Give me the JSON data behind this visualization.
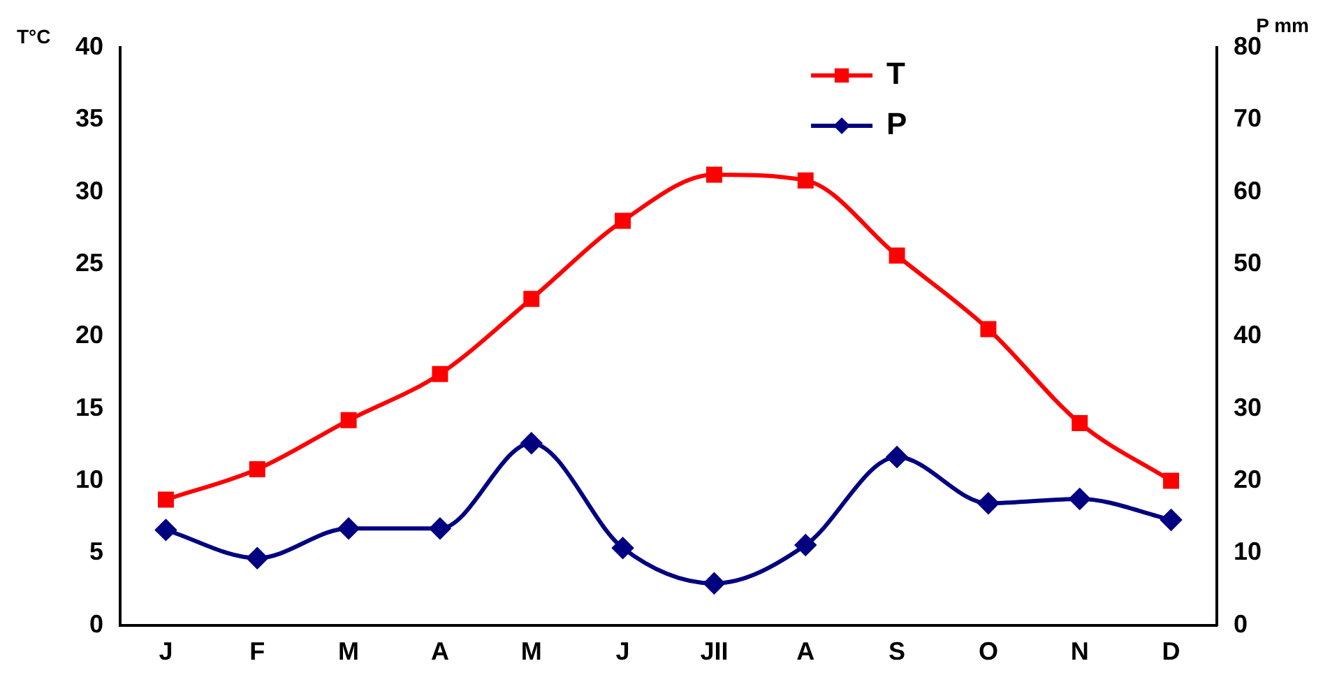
{
  "chart_data": {
    "type": "line",
    "ylabel": "T°C",
    "y2label": "P mm",
    "categories": [
      "J",
      "F",
      "M",
      "A",
      "M",
      "J",
      "JII",
      "A",
      "S",
      "O",
      "N",
      "D"
    ],
    "series": [
      {
        "name": "T",
        "color": "#ff0000",
        "marker": "square",
        "values": [
          8.7,
          10.8,
          14.2,
          17.4,
          22.6,
          28.0,
          31.2,
          30.8,
          25.6,
          20.5,
          14.0,
          10.0
        ]
      },
      {
        "name": "P",
        "color": "#000080",
        "marker": "diamond",
        "axis": "y2",
        "values": [
          13.2,
          9.3,
          13.4,
          13.4,
          25.2,
          10.7,
          5.8,
          11.1,
          23.3,
          16.9,
          17.5,
          14.6
        ]
      }
    ],
    "ylim": [
      0,
      40
    ],
    "yticks": [
      0,
      5,
      10,
      15,
      20,
      25,
      30,
      35,
      40
    ],
    "y2lim": [
      0,
      80
    ],
    "y2ticks": [
      0,
      10,
      20,
      30,
      40,
      50,
      60,
      70,
      80
    ],
    "grid": false,
    "legend": "top right"
  }
}
